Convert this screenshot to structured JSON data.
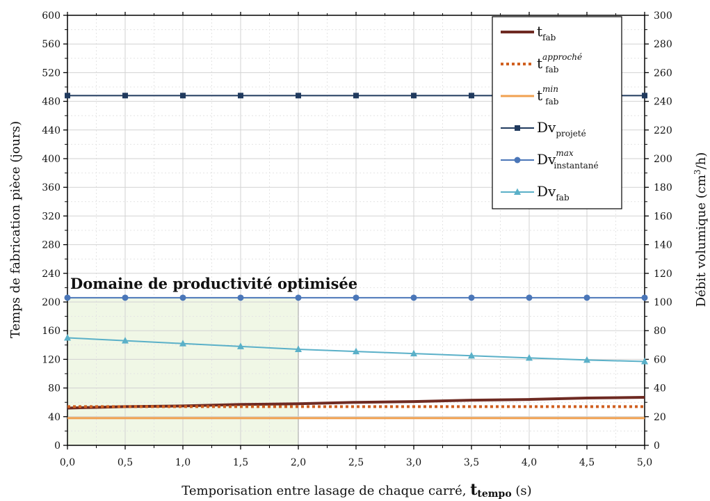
{
  "chart_data": {
    "type": "line",
    "xlabel": "Temporisation entre lasage de chaque carré, ",
    "xlabel_sym": "t",
    "xlabel_sub": "tempo",
    "xlabel_unit": " (s)",
    "ylabel_left": "Temps de fabrication pièce (jours)",
    "ylabel_right": "Débit volumique (cm",
    "ylabel_right_sup": "3",
    "ylabel_right_end": "/h)",
    "xlim": [
      0,
      5
    ],
    "ylim_left": [
      0,
      600
    ],
    "ylim_right": [
      0,
      300
    ],
    "grid": true,
    "legend_position": "top-right",
    "x_ticks": [
      "0,0",
      "0,5",
      "1,0",
      "1,5",
      "2,0",
      "2,5",
      "3,0",
      "3,5",
      "4,0",
      "4,5",
      "5,0"
    ],
    "y_left_ticks": [
      "0",
      "40",
      "80",
      "120",
      "160",
      "200",
      "240",
      "280",
      "320",
      "360",
      "400",
      "440",
      "480",
      "520",
      "560",
      "600"
    ],
    "y_right_ticks": [
      "0",
      "20",
      "40",
      "60",
      "80",
      "100",
      "120",
      "140",
      "160",
      "180",
      "200",
      "220",
      "240",
      "260",
      "280",
      "300"
    ],
    "annotation": "Domaine de productivité optimisée",
    "highlight_region": {
      "x": [
        0,
        2.0
      ],
      "y_left": [
        0,
        206
      ],
      "color": "#f0f7e6"
    },
    "x": [
      0,
      0.5,
      1.0,
      1.5,
      2.0,
      2.5,
      3.0,
      3.5,
      4.0,
      4.5,
      5.0
    ],
    "series": [
      {
        "name": "t",
        "sub": "fab",
        "sup": "",
        "axis": "left",
        "color": "#6e2a22",
        "style": "solid",
        "marker": "none",
        "width": 4,
        "values": [
          52,
          54,
          55,
          57,
          58,
          60,
          61,
          63,
          64,
          66,
          67
        ]
      },
      {
        "name": "t",
        "sub": "fab",
        "sup": "approché",
        "axis": "left",
        "color": "#d06020",
        "style": "dotted",
        "marker": "none",
        "width": 4,
        "values": [
          54,
          54,
          54,
          54,
          54,
          54,
          54,
          54,
          54,
          54,
          54
        ]
      },
      {
        "name": "t",
        "sub": "fab",
        "sup": "min",
        "axis": "left",
        "color": "#f0a050",
        "style": "solid",
        "marker": "none",
        "width": 3,
        "values": [
          38,
          38,
          38,
          38,
          38,
          38,
          38,
          38,
          38,
          38,
          38
        ]
      },
      {
        "name": "Dv",
        "sub": "projeté",
        "sup": "",
        "axis": "right",
        "color": "#203a5e",
        "style": "solid",
        "marker": "square",
        "width": 2,
        "values": [
          244,
          244,
          244,
          244,
          244,
          244,
          244,
          244,
          244,
          244,
          244
        ]
      },
      {
        "name": "Dv",
        "sub": "instantané",
        "sup": "max",
        "axis": "right",
        "color": "#4a76b8",
        "style": "solid",
        "marker": "circle",
        "width": 2,
        "values": [
          103,
          103,
          103,
          103,
          103,
          103,
          103,
          103,
          103,
          103,
          103
        ]
      },
      {
        "name": "Dv",
        "sub": "fab",
        "sup": "",
        "axis": "right",
        "color": "#5ab0c8",
        "style": "solid",
        "marker": "triangle",
        "width": 2,
        "values": [
          75,
          73,
          71,
          69,
          67,
          65.5,
          64,
          62.5,
          61,
          59.5,
          58.5
        ]
      }
    ]
  }
}
